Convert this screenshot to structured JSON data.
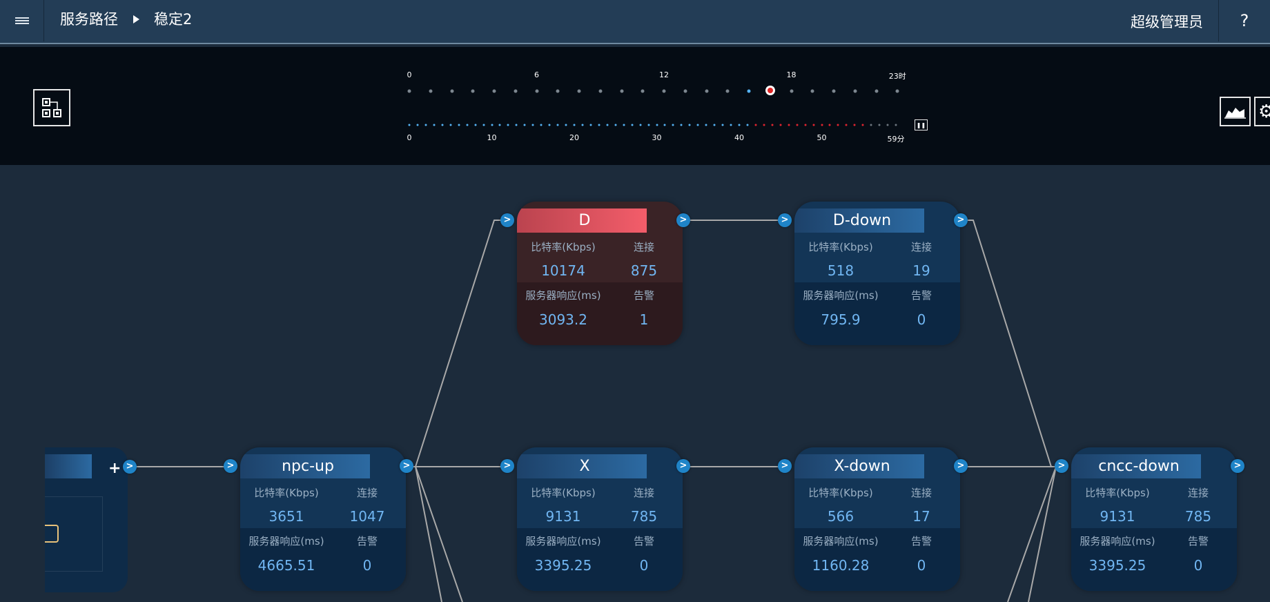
{
  "header": {
    "menu_icon": "hamburger-icon",
    "breadcrumb": [
      "服务路径",
      "稳定2"
    ],
    "user": "超级管理员",
    "help": "?"
  },
  "timeline": {
    "hour_labels": [
      "0",
      "6",
      "12",
      "18",
      "23时"
    ],
    "minute_labels": [
      "0",
      "10",
      "20",
      "30",
      "40",
      "50",
      "59分"
    ],
    "selected_hour": 17,
    "minute_colors": {
      "past": "#55b3f5",
      "alert": "#e0242f",
      "future": "#6e7780"
    },
    "buttons": {
      "topology_icon": "topology-icon",
      "chart_icon": "area-chart-icon",
      "settings_icon": "gear-icon",
      "pause_icon": "pause-icon"
    }
  },
  "labels": {
    "bitrate": "比特率(Kbps)",
    "connections": "连接",
    "response": "服务器响应(ms)",
    "alerts": "告警"
  },
  "nodes": [
    {
      "id": "D",
      "name": "D",
      "bitrate": "10174",
      "connections": "875",
      "response": "3093.2",
      "alerts": "1",
      "status": "alert"
    },
    {
      "id": "D-down",
      "name": "D-down",
      "bitrate": "518",
      "connections": "19",
      "response": "795.9",
      "alerts": "0",
      "status": "normal"
    },
    {
      "id": "npc-up",
      "name": "npc-up",
      "bitrate": "3651",
      "connections": "1047",
      "response": "4665.51",
      "alerts": "0",
      "status": "normal"
    },
    {
      "id": "X",
      "name": "X",
      "bitrate": "9131",
      "connections": "785",
      "response": "3395.25",
      "alerts": "0",
      "status": "normal"
    },
    {
      "id": "X-down",
      "name": "X-down",
      "bitrate": "566",
      "connections": "17",
      "response": "1160.28",
      "alerts": "0",
      "status": "normal"
    },
    {
      "id": "cncc-down",
      "name": "cncc-down",
      "bitrate": "9131",
      "connections": "785",
      "response": "3395.25",
      "alerts": "0",
      "status": "normal"
    }
  ],
  "port_glyph": ">",
  "add_glyph": "+"
}
